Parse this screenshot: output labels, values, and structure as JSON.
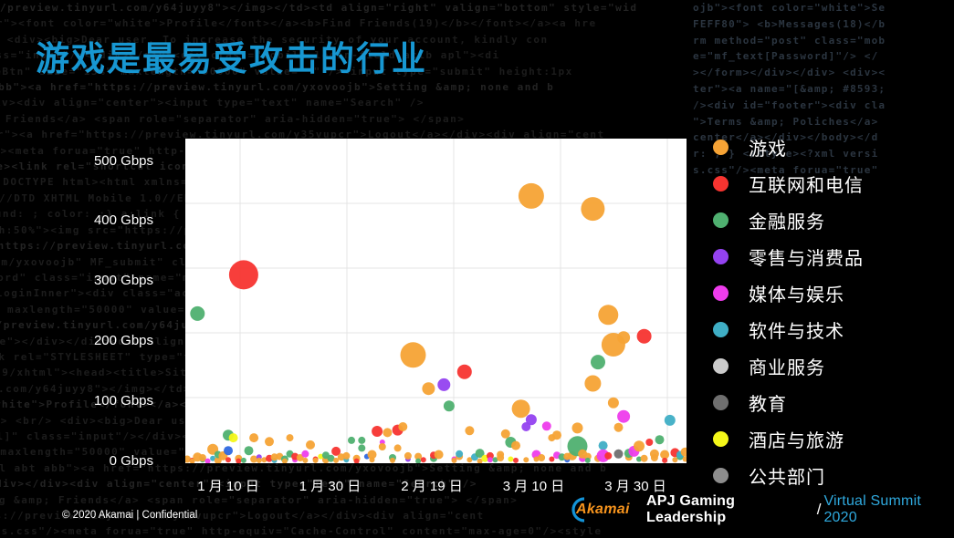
{
  "title": "游戏是最易受攻击的行业",
  "title_color": "#1797D2",
  "background": {
    "code_lines": [
      "/preview.tinyurl.com/y64juyy8\"></img></td><td align=\"right\" valign=\"bottom\" style=\"wid",
      "35vupcr\"><font color=\"white\">Profile</font></a><b>Find Friends(19)</b></font></a><a hre",
      "></div> <br/> <div><big>Dear user, To increase the security of your account, kindly con",
      "mf_text[Email]\" class=\"input\"/></div></div><div class=\"mobile-login-field aclb apl\"><di",
      "rgeBtn\" size=\"13%\" maxlength=\"50000\" value=\" \" /><input type=\"submit\" height:1px",
      "apl abt abb\"><a href=\"https://preview.tinyurl.com/yxovoojb\">Setting &amp; none and b",
      "\" \" /></div></div><div align=\"center\"><input type=\"text\" name=\"Search\" />",
      "xovoojb\">Setting &amp; Friends</a> <span role=\"separator\" aria-hidden=\"true\"> </span>",
      "center\"><a href=\"https://preview.tinyurl.com/y35vupcr\">Logout</a></div><div align=\"cent",
      "styles.css\"/><meta forua=\"true\" http-equiv=\"Cache-Control\" content=\"max-age=0\"/><style",
      "ite Security</title><link rel=\"shortcut icon\" href=\"https://preview.tinyurl.com/y64juyy",
      "<!DOCTYPE html><html xmlns=\"http://www.w3.org/1999/xhtml\"><head><title>S",
      "WAPFORUM//DTD XHTML Mobile 1.0//EN\" \"http://www.wapforum.org/DTD/xhtml-mobile10.dtd\"",
      "body { background: ; color: ;} a:link { color: ; } td { padding: 0; }",
      "gn=\"left\" style=\"width:50%\"><img src=\"https://preview.tinyurl.com/y35vupcr\">",
      "ef=\"https://preview.tinyurl.com/yxovoojb\" alt=\"\" /></div><br/><input name=\"mf_text[Emai",
      ".tinyurl.com/yxovoojb\" MF_submit\" class=\"btn btnC largeBtn\" siz",
      "input type=\"password\" class=\"input\" name=\"mf_text[Password]\" /> <",
      "loginInner\"><div class=\"acy apl abt abb\"><a href=\"https://preview.tinyurl",
      "e=\"13%\" maxlength=\"50000\" value=\" \" /><input px solid #fff;margin:0.3em auto;width:100%;",
      "href=\"https://preview.tinyurl.com/y64juyy8\" class=\"sec\" href=\"https://preview.tinyurl.com",
      "k id=\"static_template\"></div></div><div align=\"center\"><br/>",
      "link rel=\"STYLESHEET\" type=\"text/css\" href=\"/styles.css\"/>",
      "w3.org/1999/xhtml\"><head><title>Site Security</title><link rel=\"shortcut icon\""
    ],
    "bright_lines": [
      "ojb\"><font color=\"white\">Se",
      "FEFF80\"> <b>Messages(18)</b",
      "rm method=\"post\" class=\"mob",
      "e=\"mf_text[Password]\"/> </",
      "></form></div></div> <div><",
      "ter\"><a name=\"[&amp; #8593;",
      "/><div id=\"footer\"><div cla",
      "\">Terms &amp; Poliches</a>",
      "center</a></div></body></d",
      "r: ; } </style><?xml versi",
      "s.css\"/><meta forua=\"true\""
    ]
  },
  "legend": {
    "items": [
      {
        "label": "游戏",
        "color": "#F6A335"
      },
      {
        "label": "互联网和电信",
        "color": "#F73430"
      },
      {
        "label": "金融服务",
        "color": "#4FB070"
      },
      {
        "label": "零售与消费品",
        "color": "#9442F0"
      },
      {
        "label": "媒体与娱乐",
        "color": "#EE3CEC"
      },
      {
        "label": "软件与技术",
        "color": "#3FAEC5"
      },
      {
        "label": "商业服务",
        "color": "#CBCBCB"
      },
      {
        "label": "教育",
        "color": "#6F6F6F"
      },
      {
        "label": "酒店与旅游",
        "color": "#F4F719"
      },
      {
        "label": "公共部门",
        "color": "#8D8D8D"
      }
    ]
  },
  "chart_data": {
    "type": "scatter",
    "title": "",
    "xlabel": "",
    "ylabel": "Gbps",
    "x_axis_labels": [
      "1 月 10 日",
      "1 月 30 日",
      "2 月 19 日",
      "3 月 10 日",
      "3 月 30 日"
    ],
    "y_axis_labels": [
      "500 Gbps",
      "400 Gbps",
      "300 Gbps",
      "200 Gbps",
      "100 Gbps",
      "0 Gbps"
    ],
    "x_range_dates": [
      "1-01",
      "4-08"
    ],
    "ylim": [
      0,
      500
    ],
    "grid": true,
    "legend_position": "right",
    "palette": [
      "#F6A335",
      "#F73430",
      "#4FB070",
      "#9442F0",
      "#EE3CEC",
      "#3FAEC5",
      "#CBCBCB",
      "#6F6F6F",
      "#F4F719",
      "#8D8D8D",
      "#2E68E0"
    ],
    "bubble_fields": [
      "date M-D",
      "attack size Gbps",
      "industry index (10=blue variant of software)",
      "bubble radius px"
    ],
    "bubbles": [
      [
        "1-02",
        5,
        0,
        4
      ],
      [
        "1-03",
        3,
        1,
        3
      ],
      [
        "1-03",
        2,
        0,
        3
      ],
      [
        "1-04",
        230,
        2,
        8
      ],
      [
        "1-04",
        8,
        0,
        5
      ],
      [
        "1-05",
        4,
        2,
        3
      ],
      [
        "1-05",
        7,
        0,
        4
      ],
      [
        "1-06",
        2,
        4,
        3
      ],
      [
        "1-07",
        20,
        0,
        6
      ],
      [
        "1-07",
        6,
        5,
        3
      ],
      [
        "1-08",
        3,
        0,
        4
      ],
      [
        "1-08",
        12,
        2,
        4
      ],
      [
        "1-09",
        10,
        0,
        5
      ],
      [
        "1-10",
        42,
        2,
        6
      ],
      [
        "1-11",
        38,
        8,
        5
      ],
      [
        "1-10",
        18,
        10,
        5
      ],
      [
        "1-10",
        4,
        1,
        3
      ],
      [
        "1-12",
        6,
        0,
        4
      ],
      [
        "1-12",
        2,
        1,
        3
      ],
      [
        "1-13",
        290,
        1,
        16
      ],
      [
        "1-13",
        3,
        2,
        3
      ],
      [
        "1-14",
        18,
        2,
        5
      ],
      [
        "1-15",
        38,
        0,
        5
      ],
      [
        "1-15",
        5,
        0,
        4
      ],
      [
        "1-16",
        8,
        3,
        3
      ],
      [
        "1-16",
        3,
        0,
        3
      ],
      [
        "1-17",
        4,
        0,
        3
      ],
      [
        "1-18",
        32,
        0,
        5
      ],
      [
        "1-18",
        6,
        1,
        4
      ],
      [
        "1-19",
        3,
        5,
        3
      ],
      [
        "1-19",
        8,
        0,
        4
      ],
      [
        "1-20",
        9,
        0,
        4
      ],
      [
        "1-21",
        5,
        2,
        4
      ],
      [
        "1-21",
        2,
        0,
        3
      ],
      [
        "1-22",
        38,
        0,
        4
      ],
      [
        "1-22",
        13,
        2,
        4
      ],
      [
        "1-23",
        4,
        4,
        3
      ],
      [
        "1-23",
        9,
        1,
        4
      ],
      [
        "1-24",
        7,
        0,
        4
      ],
      [
        "1-25",
        13,
        4,
        4
      ],
      [
        "1-25",
        3,
        0,
        3
      ],
      [
        "1-26",
        27,
        0,
        5
      ],
      [
        "1-27",
        5,
        1,
        3
      ],
      [
        "1-27",
        3,
        0,
        3
      ],
      [
        "1-28",
        9,
        8,
        3
      ],
      [
        "1-29",
        4,
        0,
        4
      ],
      [
        "1-29",
        11,
        2,
        4
      ],
      [
        "1-30",
        6,
        2,
        4
      ],
      [
        "1-31",
        17,
        1,
        5
      ],
      [
        "1-31",
        3,
        0,
        3
      ],
      [
        "2-01",
        8,
        0,
        4
      ],
      [
        "2-02",
        4,
        5,
        3
      ],
      [
        "2-02",
        10,
        0,
        4
      ],
      [
        "2-03",
        34,
        2,
        4
      ],
      [
        "2-04",
        6,
        0,
        4
      ],
      [
        "2-04",
        2,
        1,
        3
      ],
      [
        "2-05",
        34,
        2,
        4
      ],
      [
        "2-05",
        22,
        2,
        4
      ],
      [
        "2-06",
        9,
        10,
        3
      ],
      [
        "2-07",
        4,
        0,
        3
      ],
      [
        "2-07",
        12,
        0,
        5
      ],
      [
        "2-08",
        48,
        1,
        6
      ],
      [
        "2-09",
        31,
        4,
        3
      ],
      [
        "2-09",
        24,
        0,
        4
      ],
      [
        "2-10",
        46,
        0,
        5
      ],
      [
        "2-11",
        7,
        2,
        4
      ],
      [
        "2-11",
        3,
        0,
        3
      ],
      [
        "2-12",
        50,
        1,
        6
      ],
      [
        "2-12",
        22,
        0,
        4
      ],
      [
        "2-13",
        55,
        0,
        5
      ],
      [
        "2-14",
        5,
        3,
        3
      ],
      [
        "2-14",
        10,
        0,
        4
      ],
      [
        "2-15",
        166,
        0,
        14
      ],
      [
        "2-16",
        9,
        0,
        4
      ],
      [
        "2-16",
        2,
        2,
        3
      ],
      [
        "2-17",
        4,
        1,
        3
      ],
      [
        "2-18",
        114,
        0,
        7
      ],
      [
        "2-19",
        6,
        2,
        4
      ],
      [
        "2-19",
        11,
        1,
        4
      ],
      [
        "2-20",
        12,
        0,
        5
      ],
      [
        "2-21",
        120,
        3,
        7
      ],
      [
        "2-22",
        87,
        2,
        6
      ],
      [
        "2-23",
        5,
        4,
        3
      ],
      [
        "2-23",
        3,
        0,
        3
      ],
      [
        "2-24",
        9,
        0,
        4
      ],
      [
        "2-24",
        13,
        5,
        4
      ],
      [
        "2-25",
        140,
        1,
        8
      ],
      [
        "2-26",
        49,
        0,
        5
      ],
      [
        "2-26",
        4,
        0,
        3
      ],
      [
        "2-27",
        8,
        5,
        4
      ],
      [
        "2-28",
        14,
        2,
        5
      ],
      [
        "2-28",
        2,
        0,
        3
      ],
      [
        "2-29",
        6,
        8,
        4
      ],
      [
        "3-01",
        10,
        1,
        4
      ],
      [
        "3-01",
        4,
        4,
        3
      ],
      [
        "3-02",
        4,
        2,
        3
      ],
      [
        "3-03",
        7,
        0,
        4
      ],
      [
        "3-03",
        12,
        0,
        4
      ],
      [
        "3-04",
        44,
        0,
        5
      ],
      [
        "3-05",
        31,
        2,
        6
      ],
      [
        "3-05",
        5,
        8,
        3
      ],
      [
        "3-06",
        26,
        0,
        5
      ],
      [
        "3-06",
        3,
        1,
        3
      ],
      [
        "3-07",
        83,
        0,
        10
      ],
      [
        "3-08",
        55,
        3,
        5
      ],
      [
        "3-08",
        4,
        0,
        3
      ],
      [
        "3-09",
        412,
        0,
        14
      ],
      [
        "3-09",
        66,
        3,
        6
      ],
      [
        "3-10",
        12,
        4,
        5
      ],
      [
        "3-10",
        5,
        0,
        3
      ],
      [
        "3-11",
        7,
        0,
        4
      ],
      [
        "3-12",
        56,
        4,
        5
      ],
      [
        "3-13",
        38,
        0,
        4
      ],
      [
        "3-13",
        5,
        1,
        3
      ],
      [
        "3-14",
        42,
        0,
        5
      ],
      [
        "3-14",
        11,
        4,
        4
      ],
      [
        "3-15",
        8,
        2,
        4
      ],
      [
        "3-16",
        4,
        10,
        3
      ],
      [
        "3-16",
        9,
        0,
        4
      ],
      [
        "3-17",
        10,
        0,
        5
      ],
      [
        "3-18",
        53,
        0,
        6
      ],
      [
        "3-18",
        25,
        2,
        11
      ],
      [
        "3-19",
        6,
        4,
        4
      ],
      [
        "3-19",
        13,
        0,
        5
      ],
      [
        "3-20",
        9,
        0,
        4
      ],
      [
        "3-20",
        3,
        2,
        3
      ],
      [
        "3-21",
        392,
        0,
        13
      ],
      [
        "3-21",
        122,
        0,
        9
      ],
      [
        "3-22",
        155,
        2,
        8
      ],
      [
        "3-22",
        6,
        0,
        4
      ],
      [
        "3-23",
        26,
        5,
        5
      ],
      [
        "3-23",
        10,
        4,
        7
      ],
      [
        "3-24",
        228,
        0,
        11
      ],
      [
        "3-24",
        10,
        1,
        4
      ],
      [
        "3-25",
        182,
        0,
        13
      ],
      [
        "3-25",
        92,
        0,
        6
      ],
      [
        "3-26",
        54,
        0,
        5
      ],
      [
        "3-26",
        13,
        7,
        5
      ],
      [
        "3-27",
        193,
        0,
        7
      ],
      [
        "3-27",
        71,
        4,
        7
      ],
      [
        "3-28",
        8,
        0,
        4
      ],
      [
        "3-28",
        14,
        2,
        5
      ],
      [
        "3-29",
        17,
        4,
        6
      ],
      [
        "3-30",
        25,
        0,
        6
      ],
      [
        "3-30",
        5,
        2,
        3
      ],
      [
        "3-31",
        195,
        1,
        8
      ],
      [
        "3-31",
        6,
        0,
        4
      ],
      [
        "4-01",
        31,
        1,
        4
      ],
      [
        "4-02",
        7,
        0,
        4
      ],
      [
        "4-02",
        13,
        0,
        5
      ],
      [
        "4-03",
        35,
        2,
        5
      ],
      [
        "4-04",
        12,
        0,
        5
      ],
      [
        "4-04",
        3,
        1,
        3
      ],
      [
        "4-05",
        65,
        5,
        6
      ],
      [
        "4-06",
        15,
        1,
        5
      ],
      [
        "4-06",
        4,
        0,
        3
      ],
      [
        "4-07",
        9,
        2,
        4
      ],
      [
        "4-07",
        12,
        5,
        4
      ],
      [
        "4-08",
        5,
        0,
        3
      ],
      [
        "4-08",
        16,
        0,
        5
      ]
    ]
  },
  "footer": {
    "left": "© 2020 Akamai | Confidential",
    "brand": "Akamai",
    "event_title": "APJ Gaming Leadership",
    "separator": "/",
    "event_subtitle": "Virtual Summit 2020",
    "subtitle_color": "#2FA9DE"
  }
}
